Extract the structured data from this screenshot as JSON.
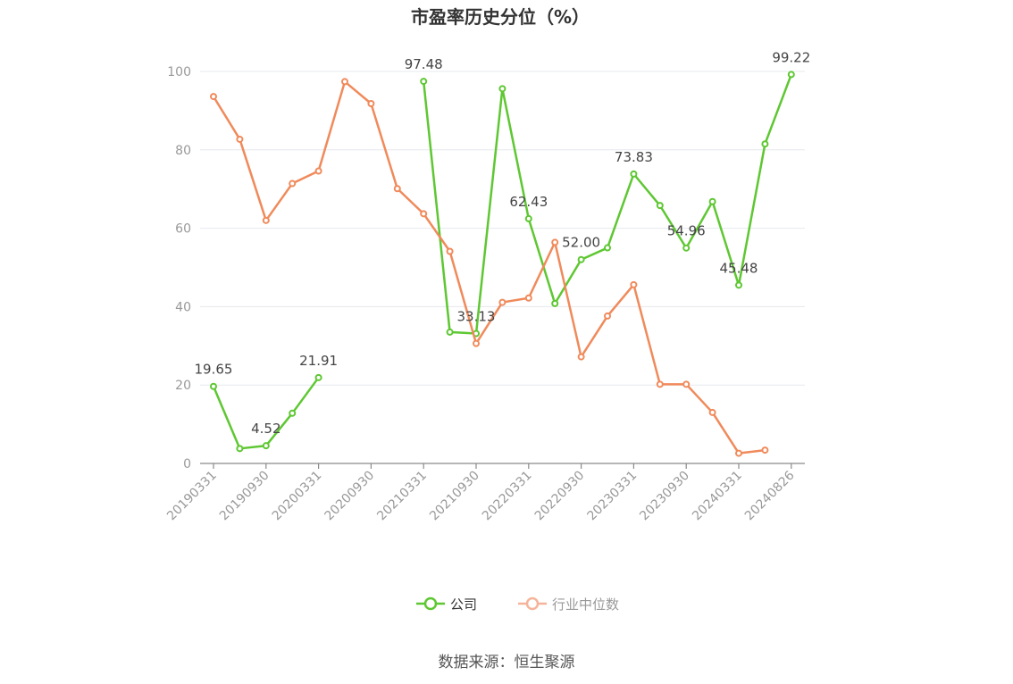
{
  "chart_data": {
    "type": "line",
    "title": "市盈率历史分位（%）",
    "ylim": [
      0,
      100
    ],
    "yticks": [
      "0",
      "20",
      "40",
      "60",
      "80",
      "100"
    ],
    "xtick_labels": [
      "20190331",
      "20190930",
      "20200331",
      "20200930",
      "20210331",
      "20210930",
      "20220331",
      "20220930",
      "20230331",
      "20230930",
      "20240331",
      "20240826"
    ],
    "x_count": 23,
    "series": [
      {
        "name": "公司",
        "color": "#5ec732",
        "values": [
          19.65,
          3.8,
          4.52,
          12.8,
          21.91,
          null,
          null,
          null,
          97.48,
          33.5,
          33.13,
          95.6,
          62.43,
          40.8,
          52.0,
          55.0,
          73.83,
          65.8,
          54.96,
          66.8,
          45.48,
          81.5,
          99.22
        ],
        "labels": [
          {
            "i": 0,
            "text": "19.65"
          },
          {
            "i": 2,
            "text": "4.52"
          },
          {
            "i": 4,
            "text": "21.91"
          },
          {
            "i": 8,
            "text": "97.48"
          },
          {
            "i": 10,
            "text": "33.13"
          },
          {
            "i": 12,
            "text": "62.43"
          },
          {
            "i": 14,
            "text": "52.00"
          },
          {
            "i": 16,
            "text": "73.83"
          },
          {
            "i": 18,
            "text": "54.96"
          },
          {
            "i": 20,
            "text": "45.48"
          },
          {
            "i": 22,
            "text": "99.22"
          }
        ]
      },
      {
        "name": "行业中位数",
        "color": "#f08a5b",
        "values": [
          93.6,
          82.7,
          62.0,
          71.4,
          74.6,
          97.4,
          91.8,
          70.1,
          63.7,
          54.1,
          30.6,
          41.1,
          42.2,
          56.4,
          27.2,
          37.6,
          45.6,
          20.2,
          20.2,
          13.0,
          2.6,
          3.4,
          null
        ]
      }
    ],
    "legend": {
      "position": "bottom",
      "items": [
        {
          "name": "公司",
          "color": "#5ec732",
          "text_color": "#333333"
        },
        {
          "name": "行业中位数",
          "color": "#f5b49a",
          "text_color": "#999999"
        }
      ]
    },
    "grid": true
  },
  "footer": {
    "source": "数据来源：恒生聚源"
  }
}
